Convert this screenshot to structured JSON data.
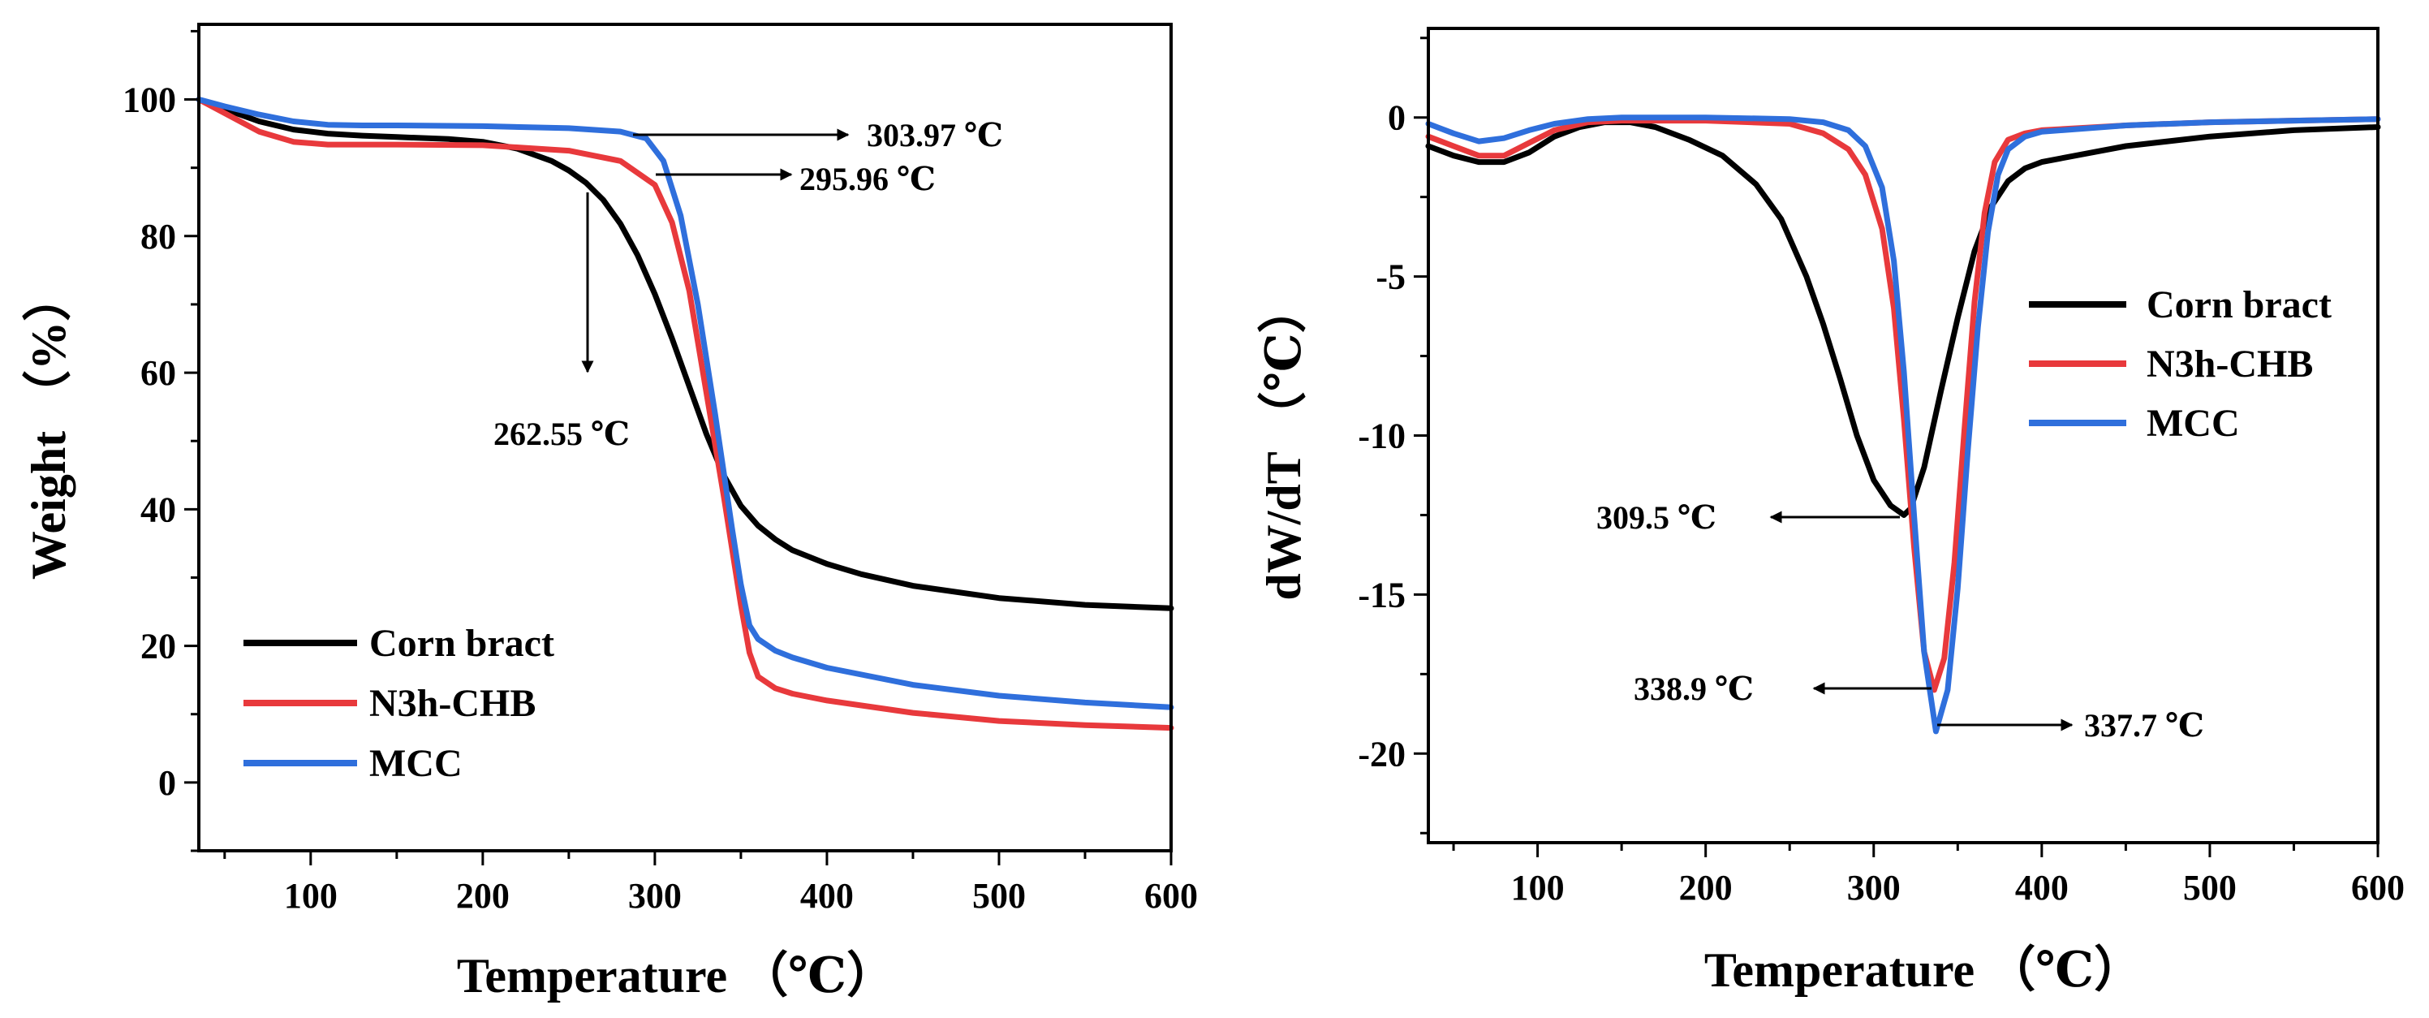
{
  "chart_data": [
    {
      "type": "line",
      "id": "tga",
      "xlabel": "Temperature （℃）",
      "ylabel": "Weight （%）",
      "xlim": [
        35,
        600
      ],
      "ylim": [
        -10,
        111
      ],
      "xticks": [
        100,
        200,
        300,
        400,
        500,
        600
      ],
      "yticks": [
        0,
        20,
        40,
        60,
        80,
        100
      ],
      "legend_position": "bottom-left",
      "series": [
        {
          "name": "Corn bract",
          "color": "#000000",
          "x": [
            35,
            50,
            70,
            90,
            110,
            130,
            150,
            180,
            200,
            220,
            240,
            250,
            260,
            270,
            280,
            290,
            300,
            310,
            320,
            330,
            340,
            350,
            360,
            370,
            380,
            400,
            420,
            450,
            500,
            550,
            600
          ],
          "y": [
            100,
            98.6,
            96.8,
            95.6,
            95.0,
            94.7,
            94.5,
            94.2,
            93.8,
            92.8,
            91.0,
            89.6,
            87.8,
            85.3,
            81.8,
            77.2,
            71.5,
            65.0,
            58.0,
            51.0,
            45.0,
            40.5,
            37.6,
            35.6,
            34.0,
            32.0,
            30.5,
            28.8,
            27.0,
            26.0,
            25.5
          ]
        },
        {
          "name": "N3h-CHB",
          "color": "#e8393c",
          "x": [
            35,
            50,
            70,
            90,
            110,
            130,
            150,
            200,
            250,
            280,
            300,
            310,
            320,
            330,
            340,
            350,
            355,
            360,
            370,
            380,
            400,
            450,
            500,
            550,
            600
          ],
          "y": [
            100,
            98.0,
            95.3,
            93.8,
            93.4,
            93.4,
            93.4,
            93.3,
            92.5,
            91.0,
            87.5,
            82.0,
            72.0,
            57.0,
            42.0,
            26.0,
            19.0,
            15.5,
            13.8,
            13.0,
            12.0,
            10.2,
            9.0,
            8.4,
            8.0
          ]
        },
        {
          "name": "MCC",
          "color": "#2f6fdc",
          "x": [
            35,
            50,
            70,
            90,
            110,
            130,
            150,
            200,
            250,
            280,
            295,
            305,
            315,
            325,
            335,
            345,
            350,
            355,
            360,
            370,
            380,
            400,
            450,
            500,
            550,
            600
          ],
          "y": [
            100,
            99.0,
            97.8,
            96.8,
            96.3,
            96.2,
            96.2,
            96.1,
            95.8,
            95.3,
            94.3,
            91.0,
            83.0,
            70.0,
            54.0,
            37.0,
            29.0,
            23.0,
            21.0,
            19.3,
            18.3,
            16.8,
            14.3,
            12.7,
            11.7,
            11.0
          ]
        }
      ],
      "annotations": [
        {
          "text": "303.97 ℃",
          "x": 303.97,
          "y": 96,
          "direction": "right"
        },
        {
          "text": "295.96 ℃",
          "x": 295.96,
          "y": 88.5,
          "direction": "right"
        },
        {
          "text": "262.55 ℃",
          "x": 262.55,
          "y": 88,
          "direction": "down"
        }
      ]
    },
    {
      "type": "line",
      "id": "dtg",
      "xlabel": "Temperature （℃）",
      "ylabel": "dW/dT （℃）",
      "xlim": [
        35,
        600
      ],
      "ylim": [
        -22.8,
        2.8
      ],
      "xticks": [
        100,
        200,
        300,
        400,
        500,
        600
      ],
      "yticks": [
        0,
        -5,
        -10,
        -15,
        -20
      ],
      "legend_position": "center-right",
      "series": [
        {
          "name": "Corn bract",
          "color": "#000000",
          "x": [
            35,
            50,
            65,
            80,
            95,
            110,
            125,
            140,
            155,
            170,
            190,
            210,
            230,
            245,
            260,
            270,
            280,
            290,
            300,
            310,
            318,
            322,
            330,
            340,
            350,
            360,
            370,
            380,
            390,
            400,
            420,
            450,
            500,
            550,
            600
          ],
          "y": [
            -0.9,
            -1.2,
            -1.4,
            -1.4,
            -1.1,
            -0.6,
            -0.3,
            -0.15,
            -0.15,
            -0.3,
            -0.7,
            -1.2,
            -2.1,
            -3.2,
            -5.0,
            -6.5,
            -8.2,
            -10.0,
            -11.4,
            -12.2,
            -12.5,
            -12.3,
            -11.0,
            -8.6,
            -6.3,
            -4.2,
            -2.8,
            -2.0,
            -1.6,
            -1.4,
            -1.2,
            -0.9,
            -0.6,
            -0.4,
            -0.3
          ]
        },
        {
          "name": "N3h-CHB",
          "color": "#e8393c",
          "x": [
            35,
            50,
            65,
            80,
            95,
            110,
            130,
            150,
            200,
            250,
            270,
            285,
            295,
            305,
            312,
            318,
            324,
            330,
            336,
            342,
            348,
            354,
            360,
            366,
            372,
            380,
            390,
            400,
            450,
            500,
            550,
            600
          ],
          "y": [
            -0.6,
            -0.9,
            -1.2,
            -1.2,
            -0.8,
            -0.4,
            -0.15,
            -0.1,
            -0.1,
            -0.2,
            -0.5,
            -1.0,
            -1.8,
            -3.5,
            -6.0,
            -9.5,
            -13.5,
            -16.8,
            -18.0,
            -17.0,
            -14.0,
            -9.8,
            -5.8,
            -3.0,
            -1.4,
            -0.7,
            -0.5,
            -0.4,
            -0.25,
            -0.15,
            -0.1,
            -0.05
          ]
        },
        {
          "name": "MCC",
          "color": "#2f6fdc",
          "x": [
            35,
            50,
            65,
            80,
            95,
            110,
            130,
            150,
            200,
            250,
            270,
            285,
            295,
            305,
            312,
            318,
            324,
            330,
            337,
            344,
            350,
            356,
            362,
            368,
            374,
            380,
            390,
            400,
            450,
            500,
            550,
            600
          ],
          "y": [
            -0.2,
            -0.5,
            -0.75,
            -0.65,
            -0.4,
            -0.2,
            -0.05,
            0,
            0,
            -0.05,
            -0.15,
            -0.4,
            -0.9,
            -2.2,
            -4.5,
            -8.0,
            -12.5,
            -16.8,
            -19.3,
            -18.0,
            -14.8,
            -10.5,
            -6.6,
            -3.6,
            -1.8,
            -1.0,
            -0.6,
            -0.45,
            -0.25,
            -0.15,
            -0.1,
            -0.05
          ]
        }
      ],
      "annotations": [
        {
          "text": "309.5 ℃",
          "x": 320,
          "y": -12.5,
          "direction": "left"
        },
        {
          "text": "338.9 ℃",
          "x": 338,
          "y": -18.0,
          "direction": "left"
        },
        {
          "text": "337.7 ℃",
          "x": 337.5,
          "y": -19.3,
          "direction": "right"
        }
      ]
    }
  ]
}
